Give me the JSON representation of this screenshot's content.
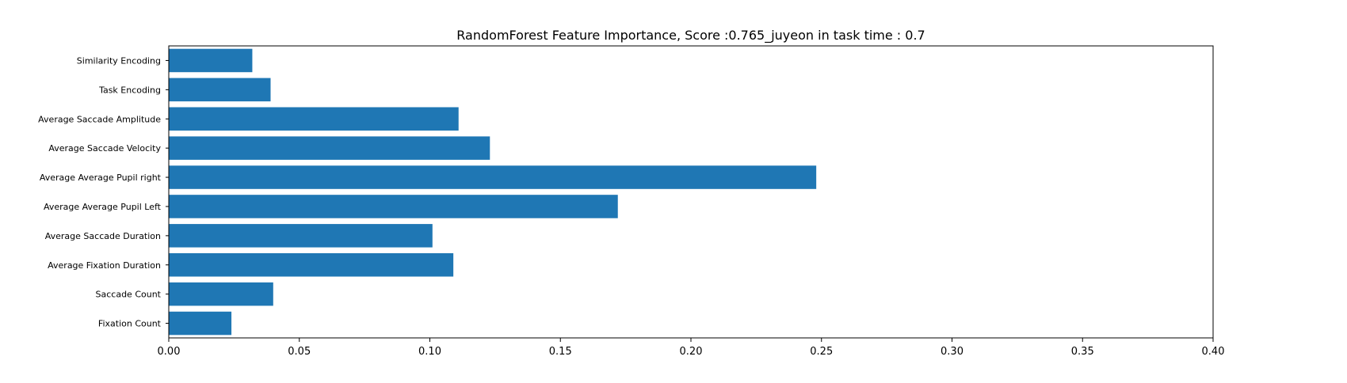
{
  "chart_data": {
    "type": "bar",
    "orientation": "horizontal",
    "title": "RandomForest Feature Importance, Score :0.765_juyeon in task time : 0.7",
    "xlabel": "",
    "ylabel": "",
    "xlim": [
      0,
      0.4
    ],
    "xticks": [
      "0.00",
      "0.05",
      "0.10",
      "0.15",
      "0.20",
      "0.25",
      "0.30",
      "0.35",
      "0.40"
    ],
    "categories": [
      "Fixation Count",
      "Saccade Count",
      "Average Fixation Duration",
      "Average Saccade Duration",
      "Average Average Pupil Left",
      "Average Average Pupil right",
      "Average Saccade Velocity",
      "Average Saccade Amplitude",
      "Task Encoding",
      "Similarity Encoding"
    ],
    "values": [
      0.024,
      0.04,
      0.109,
      0.101,
      0.172,
      0.248,
      0.123,
      0.111,
      0.039,
      0.032
    ],
    "bar_color": "#1f77b4",
    "grid": false,
    "legend": "none"
  }
}
